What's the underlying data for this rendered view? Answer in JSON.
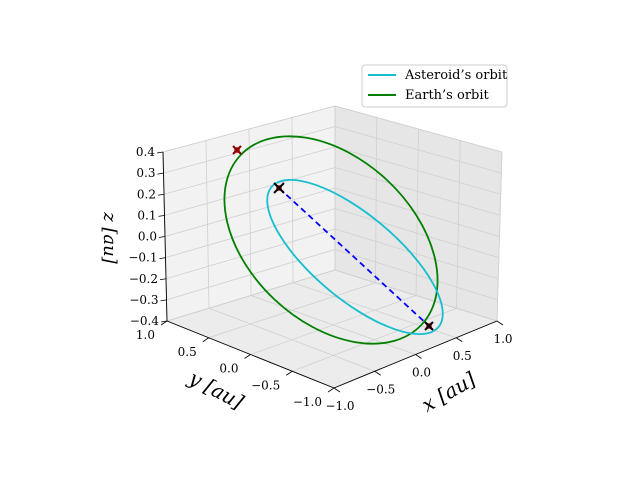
{
  "chart_data": {
    "type": "line",
    "projection": "3d",
    "xlabel": "x [au]",
    "ylabel": "y [au]",
    "zlabel": "z [au]",
    "xlim": [
      -1.0,
      1.0
    ],
    "ylim": [
      -1.0,
      1.0
    ],
    "zlim": [
      -0.4,
      0.4
    ],
    "x_ticks": [
      "−1.0",
      "−0.5",
      "0.0",
      "0.5",
      "1.0"
    ],
    "y_ticks": [
      "1.0",
      "0.5",
      "0.0",
      "−0.5",
      "−1.0"
    ],
    "z_ticks": [
      "0.4",
      "0.3",
      "0.2",
      "0.1",
      "0.0",
      "−0.1",
      "−0.2",
      "−0.3",
      "−0.4"
    ],
    "grid": true,
    "legend_position": "top-right",
    "series": [
      {
        "name": "Asteroid’s orbit",
        "color": "#17becf",
        "style": "solid"
      },
      {
        "name": "Earth’s orbit",
        "color": "#008000",
        "style": "solid"
      }
    ],
    "connector": {
      "color": "#0000ff",
      "style": "dashed"
    },
    "markers": [
      {
        "symbol": "x",
        "color": "#8b0000"
      },
      {
        "symbol": "x",
        "color": "#000000"
      },
      {
        "symbol": "x",
        "color": "#000000"
      }
    ]
  }
}
